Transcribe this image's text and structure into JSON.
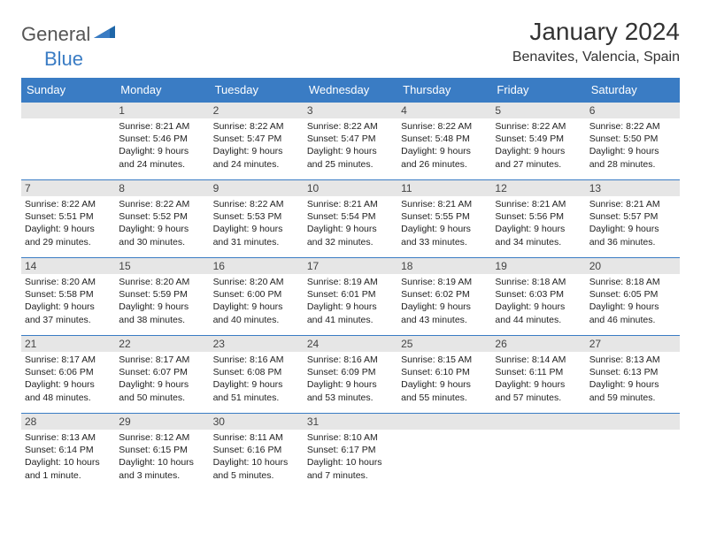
{
  "colors": {
    "accent": "#3a7cc4",
    "dayHeaderBg": "#e6e6e6",
    "text": "#222222",
    "logoGray": "#555555"
  },
  "logo": {
    "part1": "General",
    "part2": "Blue"
  },
  "title": "January 2024",
  "location": "Benavites, Valencia, Spain",
  "weekdays": [
    "Sunday",
    "Monday",
    "Tuesday",
    "Wednesday",
    "Thursday",
    "Friday",
    "Saturday"
  ],
  "weeks": [
    [
      null,
      {
        "n": "1",
        "sr": "Sunrise: 8:21 AM",
        "ss": "Sunset: 5:46 PM",
        "dl": "Daylight: 9 hours and 24 minutes."
      },
      {
        "n": "2",
        "sr": "Sunrise: 8:22 AM",
        "ss": "Sunset: 5:47 PM",
        "dl": "Daylight: 9 hours and 24 minutes."
      },
      {
        "n": "3",
        "sr": "Sunrise: 8:22 AM",
        "ss": "Sunset: 5:47 PM",
        "dl": "Daylight: 9 hours and 25 minutes."
      },
      {
        "n": "4",
        "sr": "Sunrise: 8:22 AM",
        "ss": "Sunset: 5:48 PM",
        "dl": "Daylight: 9 hours and 26 minutes."
      },
      {
        "n": "5",
        "sr": "Sunrise: 8:22 AM",
        "ss": "Sunset: 5:49 PM",
        "dl": "Daylight: 9 hours and 27 minutes."
      },
      {
        "n": "6",
        "sr": "Sunrise: 8:22 AM",
        "ss": "Sunset: 5:50 PM",
        "dl": "Daylight: 9 hours and 28 minutes."
      }
    ],
    [
      {
        "n": "7",
        "sr": "Sunrise: 8:22 AM",
        "ss": "Sunset: 5:51 PM",
        "dl": "Daylight: 9 hours and 29 minutes."
      },
      {
        "n": "8",
        "sr": "Sunrise: 8:22 AM",
        "ss": "Sunset: 5:52 PM",
        "dl": "Daylight: 9 hours and 30 minutes."
      },
      {
        "n": "9",
        "sr": "Sunrise: 8:22 AM",
        "ss": "Sunset: 5:53 PM",
        "dl": "Daylight: 9 hours and 31 minutes."
      },
      {
        "n": "10",
        "sr": "Sunrise: 8:21 AM",
        "ss": "Sunset: 5:54 PM",
        "dl": "Daylight: 9 hours and 32 minutes."
      },
      {
        "n": "11",
        "sr": "Sunrise: 8:21 AM",
        "ss": "Sunset: 5:55 PM",
        "dl": "Daylight: 9 hours and 33 minutes."
      },
      {
        "n": "12",
        "sr": "Sunrise: 8:21 AM",
        "ss": "Sunset: 5:56 PM",
        "dl": "Daylight: 9 hours and 34 minutes."
      },
      {
        "n": "13",
        "sr": "Sunrise: 8:21 AM",
        "ss": "Sunset: 5:57 PM",
        "dl": "Daylight: 9 hours and 36 minutes."
      }
    ],
    [
      {
        "n": "14",
        "sr": "Sunrise: 8:20 AM",
        "ss": "Sunset: 5:58 PM",
        "dl": "Daylight: 9 hours and 37 minutes."
      },
      {
        "n": "15",
        "sr": "Sunrise: 8:20 AM",
        "ss": "Sunset: 5:59 PM",
        "dl": "Daylight: 9 hours and 38 minutes."
      },
      {
        "n": "16",
        "sr": "Sunrise: 8:20 AM",
        "ss": "Sunset: 6:00 PM",
        "dl": "Daylight: 9 hours and 40 minutes."
      },
      {
        "n": "17",
        "sr": "Sunrise: 8:19 AM",
        "ss": "Sunset: 6:01 PM",
        "dl": "Daylight: 9 hours and 41 minutes."
      },
      {
        "n": "18",
        "sr": "Sunrise: 8:19 AM",
        "ss": "Sunset: 6:02 PM",
        "dl": "Daylight: 9 hours and 43 minutes."
      },
      {
        "n": "19",
        "sr": "Sunrise: 8:18 AM",
        "ss": "Sunset: 6:03 PM",
        "dl": "Daylight: 9 hours and 44 minutes."
      },
      {
        "n": "20",
        "sr": "Sunrise: 8:18 AM",
        "ss": "Sunset: 6:05 PM",
        "dl": "Daylight: 9 hours and 46 minutes."
      }
    ],
    [
      {
        "n": "21",
        "sr": "Sunrise: 8:17 AM",
        "ss": "Sunset: 6:06 PM",
        "dl": "Daylight: 9 hours and 48 minutes."
      },
      {
        "n": "22",
        "sr": "Sunrise: 8:17 AM",
        "ss": "Sunset: 6:07 PM",
        "dl": "Daylight: 9 hours and 50 minutes."
      },
      {
        "n": "23",
        "sr": "Sunrise: 8:16 AM",
        "ss": "Sunset: 6:08 PM",
        "dl": "Daylight: 9 hours and 51 minutes."
      },
      {
        "n": "24",
        "sr": "Sunrise: 8:16 AM",
        "ss": "Sunset: 6:09 PM",
        "dl": "Daylight: 9 hours and 53 minutes."
      },
      {
        "n": "25",
        "sr": "Sunrise: 8:15 AM",
        "ss": "Sunset: 6:10 PM",
        "dl": "Daylight: 9 hours and 55 minutes."
      },
      {
        "n": "26",
        "sr": "Sunrise: 8:14 AM",
        "ss": "Sunset: 6:11 PM",
        "dl": "Daylight: 9 hours and 57 minutes."
      },
      {
        "n": "27",
        "sr": "Sunrise: 8:13 AM",
        "ss": "Sunset: 6:13 PM",
        "dl": "Daylight: 9 hours and 59 minutes."
      }
    ],
    [
      {
        "n": "28",
        "sr": "Sunrise: 8:13 AM",
        "ss": "Sunset: 6:14 PM",
        "dl": "Daylight: 10 hours and 1 minute."
      },
      {
        "n": "29",
        "sr": "Sunrise: 8:12 AM",
        "ss": "Sunset: 6:15 PM",
        "dl": "Daylight: 10 hours and 3 minutes."
      },
      {
        "n": "30",
        "sr": "Sunrise: 8:11 AM",
        "ss": "Sunset: 6:16 PM",
        "dl": "Daylight: 10 hours and 5 minutes."
      },
      {
        "n": "31",
        "sr": "Sunrise: 8:10 AM",
        "ss": "Sunset: 6:17 PM",
        "dl": "Daylight: 10 hours and 7 minutes."
      },
      null,
      null,
      null
    ]
  ]
}
